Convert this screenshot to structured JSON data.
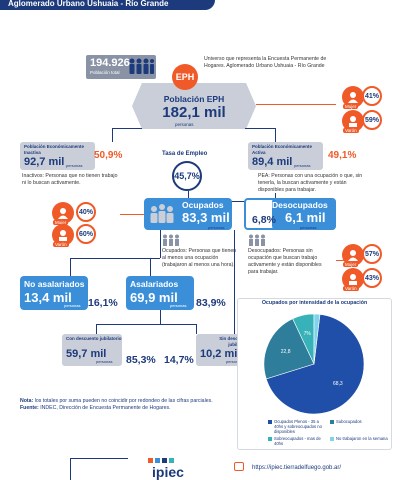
{
  "header": {
    "title": "Aglomerado Urbano Ushuaia - Río Grande"
  },
  "total": {
    "value": "194.926",
    "label": "Población total"
  },
  "universe_note": "Universo que representa la Encuesta Permanente de Hogares. Aglomerado Urbano Ushuaia - Río Grande",
  "eph": {
    "badge": "EPH",
    "title": "Población EPH",
    "value": "182,1 mil",
    "unit": "personas"
  },
  "gender_top": {
    "female_label": "Mujer",
    "female_pct": "41%",
    "male_label": "Varón",
    "male_pct": "59%"
  },
  "inactive": {
    "label": "Población Económicamente Inactiva",
    "value": "92,7 mil",
    "unit": "personas",
    "pct": "50,9%",
    "desc": "Inactivos: Personas que no tienen trabajo ni lo buscan activamente."
  },
  "active": {
    "label": "Población Económicamente Activa",
    "value": "89,4 mil",
    "unit": "personas",
    "pct": "49,1%",
    "desc": "PEA: Personas con una ocupación o que, sin tenerla, la buscan activamente y están disponibles para trabajar."
  },
  "employment_rate": {
    "label": "Tasa de Empleo",
    "value": "45,7%"
  },
  "employed": {
    "title": "Ocupados",
    "value": "83,3 mil",
    "unit": "personas",
    "desc": "Ocupados: Personas que tienen al menos una ocupación (trabajaron al menos una hora).",
    "female_label": "Mujer",
    "female_pct": "40%",
    "male_label": "Varón",
    "male_pct": "60%"
  },
  "unemployed": {
    "title": "Desocupados",
    "pct": "6,8%",
    "value": "6,1 mil",
    "unit": "personas",
    "desc": "Desocupados: Personas sin ocupación que buscan trabajo activamente y están disponibles para trabajar.",
    "female_label": "Mujer",
    "female_pct": "57%",
    "male_label": "Varón",
    "male_pct": "43%"
  },
  "non_salaried": {
    "title": "No asalariados",
    "value": "13,4 mil",
    "unit": "personas",
    "pct": "16,1%"
  },
  "salaried": {
    "title": "Asalariados",
    "value": "69,9 mil",
    "unit": "personas",
    "pct": "83,9%"
  },
  "with_pension": {
    "title": "Con descuento jubilatorio",
    "value": "59,7 mil",
    "unit": "personas",
    "pct": "85,3%"
  },
  "without_pension": {
    "title": "Sin descuento jubilatorio",
    "value": "10,2 mil",
    "unit": "personas",
    "pct": "14,7%"
  },
  "chart_data": {
    "type": "pie",
    "title": "Ocupados por intensidad de la ocupación",
    "categories": [
      "Ocupados Plenos - 35 a 40hs y sobreocupados no disponibles",
      "Subocupados",
      "Sobreocupados - mas de 40hs",
      "No trabajaron en la semana"
    ],
    "values": [
      68.3,
      22.8,
      7.0,
      1.9
    ],
    "labels": [
      "68,3",
      "22,8",
      "7%",
      "1,9%"
    ],
    "colors": [
      "#1f4fa8",
      "#2e7d9a",
      "#37b2b8",
      "#7fd3ea"
    ],
    "legend": "bottom"
  },
  "footer": {
    "note_label": "Nota:",
    "note": "los totales por suma pueden no coincidir por redondeo de las cifras parciales.",
    "source_label": "Fuente:",
    "source": "INDEC, Dirección de Encuesta Permanente de Hogares.",
    "url": "https://ipiec.tierradelfuego.gob.ar/",
    "logo": "ipiec"
  },
  "colors": {
    "navy": "#1c3a7c",
    "orange": "#f05a28",
    "blue": "#3b8fd9",
    "gray": "#c9ced8"
  }
}
